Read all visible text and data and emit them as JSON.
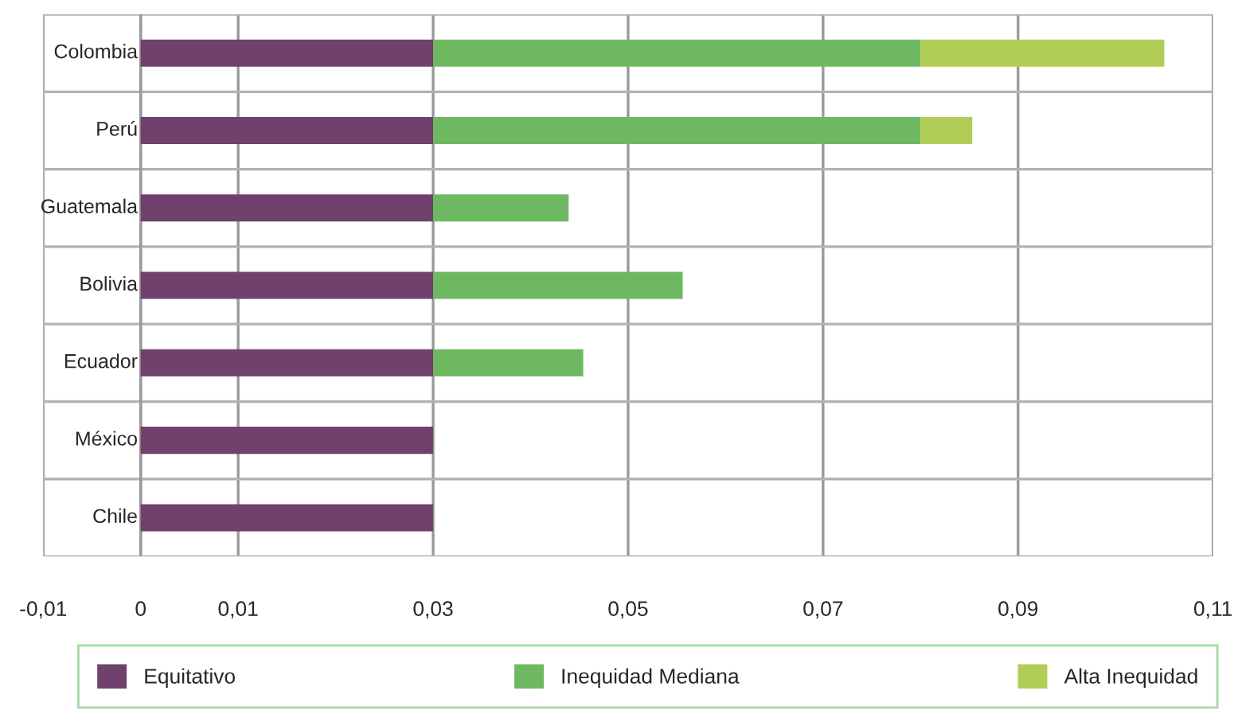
{
  "chart_data": {
    "type": "bar",
    "orientation": "horizontal",
    "stacked": true,
    "categories": [
      "Colombia",
      "Perú",
      "Guatemala",
      "Bolivia",
      "Ecuador",
      "México",
      "Chile"
    ],
    "series": [
      {
        "name": "Equitativo",
        "color": "#6f416c",
        "values": [
          0.03,
          0.03,
          0.03,
          0.03,
          0.03,
          0.03,
          0.03
        ]
      },
      {
        "name": "Inequidad Mediana",
        "color": "#6fb862",
        "values": [
          0.05,
          0.05,
          0.0139,
          0.0256,
          0.0154,
          null,
          null
        ]
      },
      {
        "name": "Alta Inequidad",
        "color": "#b1cd55",
        "values": [
          0.025,
          0.0053,
          null,
          null,
          null,
          null,
          null
        ]
      }
    ],
    "xlim": [
      -0.01,
      0.11
    ],
    "xticks": [
      {
        "value": -0.01,
        "label": "-0,01"
      },
      0,
      {
        "value": 0.01,
        "label": "0,01"
      },
      {
        "value": 0.03,
        "label": "0,03"
      },
      {
        "value": 0.05,
        "label": "0,05"
      },
      {
        "value": 0.07,
        "label": "0,07"
      },
      {
        "value": 0.09,
        "label": "0,09"
      },
      {
        "value": 0.11,
        "label": "0,11"
      }
    ],
    "grid": true,
    "legend": "bottom"
  }
}
